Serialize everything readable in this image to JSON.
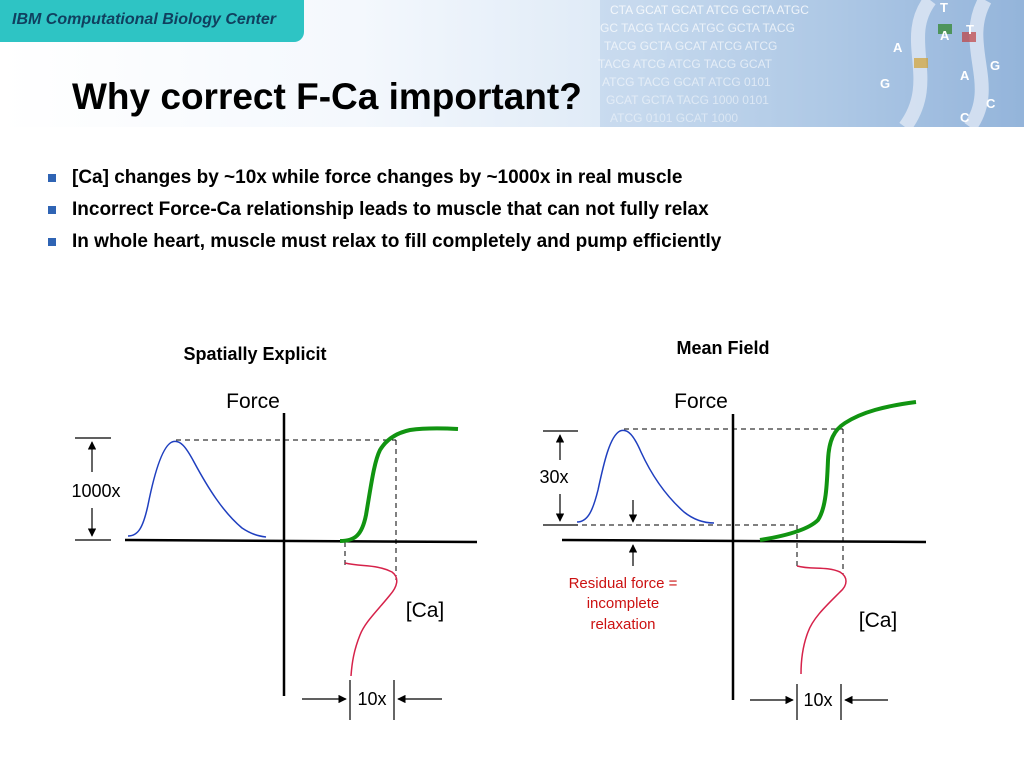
{
  "header": {
    "brand": "IBM Computational Biology Center",
    "title": "Why correct F-Ca important?",
    "dna_letters": [
      "T",
      "A",
      "T",
      "G",
      "A",
      "G",
      "C",
      "A",
      "C"
    ]
  },
  "bullets": [
    "[Ca] changes by ~10x while force changes by ~1000x in real muscle",
    "Incorrect Force-Ca relationship leads to muscle that can not fully relax",
    "In whole heart, muscle must relax to fill completely and pump efficiently"
  ],
  "left_diagram": {
    "title": "Spatially Explicit",
    "force_label": "Force",
    "ca_label": "[Ca]",
    "force_range_label": "1000x",
    "ca_range_label": "10x"
  },
  "right_diagram": {
    "title": "Mean Field",
    "force_label": "Force",
    "ca_label": "[Ca]",
    "force_range_label": "30x",
    "ca_range_label": "10x",
    "residual_note": [
      "Residual force =",
      "incomplete",
      "relaxation"
    ]
  },
  "colors": {
    "force_transient": "#1f3fbf",
    "force_ca_curve": "#119411",
    "ca_transient": "#d6224a",
    "note_text": "#cc1111",
    "tab": "#2ec4c4",
    "bullet_marker": "#2f64b4"
  }
}
